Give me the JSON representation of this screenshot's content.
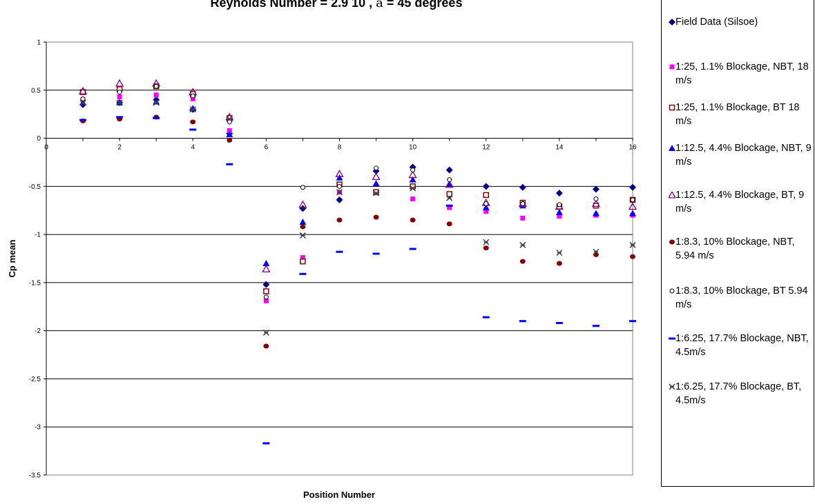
{
  "chart_data": {
    "type": "scatter",
    "title_prefix": "Reynolds Number = 2.9 10",
    "title_sep": " , ",
    "title_alpha": "a",
    "title_suffix": " = 45 degrees",
    "xlabel": "Position Number",
    "ylabel": "Cp mean",
    "xlim": [
      0,
      16
    ],
    "ylim": [
      -3.5,
      1
    ],
    "xticks": [
      0,
      2,
      4,
      6,
      8,
      10,
      12,
      14,
      16
    ],
    "xtick_labels": [
      "0",
      "2",
      "4",
      "6",
      "8",
      "10",
      "12",
      "14",
      "16"
    ],
    "yticks": [
      1,
      0.5,
      0,
      -0.5,
      -1,
      -1.5,
      -2,
      -2.5,
      -3,
      -3.5
    ],
    "ytick_labels": [
      "1",
      "0.5",
      "0",
      "-0.5",
      "-1",
      "-1.5",
      "-2",
      "-2.5",
      "-3",
      "-3.5"
    ],
    "grid": "horizontal",
    "legend_position": "right",
    "x": [
      1,
      2,
      3,
      4,
      5,
      6,
      7,
      8,
      9,
      10,
      11,
      12,
      13,
      14,
      15,
      16
    ],
    "series": [
      {
        "name": "Field Data (Silsoe)",
        "marker": "diamond",
        "color": "#000080",
        "values": [
          0.35,
          0.37,
          0.4,
          0.3,
          0.05,
          -1.52,
          -0.73,
          -0.64,
          -0.34,
          -0.3,
          -0.33,
          -0.5,
          -0.51,
          -0.57,
          -0.53,
          -0.51
        ]
      },
      {
        "name": "1:25, 1.1% Blockage, NBT, 18 m/s",
        "marker": "square",
        "color": "#ff00ff",
        "values": [
          0.4,
          0.43,
          0.45,
          0.41,
          0.08,
          -1.69,
          -1.24,
          -0.56,
          -0.56,
          -0.63,
          -0.72,
          -0.76,
          -0.83,
          -0.81,
          -0.8,
          -0.8
        ]
      },
      {
        "name": "1:25, 1.1% Blockage, BT 18 m/s",
        "marker": "square-open",
        "color": "#800000",
        "values": [
          0.48,
          0.51,
          0.54,
          0.46,
          0.21,
          -1.59,
          -1.28,
          -0.48,
          -0.56,
          -0.5,
          -0.58,
          -0.59,
          -0.67,
          -0.71,
          -0.7,
          -0.64
        ]
      },
      {
        "name": "1:12.5, 4.4% Blockage, NBT, 9 m/s",
        "marker": "triangle",
        "color": "#0000ff",
        "values": [
          0.37,
          0.37,
          0.38,
          0.31,
          0.04,
          -1.3,
          -0.87,
          -0.41,
          -0.47,
          -0.43,
          -0.48,
          -0.72,
          -0.7,
          -0.77,
          -0.78,
          -0.78
        ]
      },
      {
        "name": "1:12.5, 4.4% Blockage, BT, 9 m/s",
        "marker": "triangle-open",
        "color": "#800080",
        "values": [
          0.49,
          0.57,
          0.57,
          0.48,
          0.22,
          -1.36,
          -0.69,
          -0.37,
          -0.4,
          -0.38,
          -0.48,
          -0.67,
          -0.68,
          -0.71,
          -0.68,
          -0.71
        ]
      },
      {
        "name": "1:8.3, 10% Blockage, NBT, 5.94 m/s",
        "marker": "circle",
        "color": "#800000",
        "values": [
          0.18,
          0.2,
          0.22,
          0.17,
          -0.02,
          -2.16,
          -0.92,
          -0.85,
          -0.82,
          -0.85,
          -0.89,
          -1.14,
          -1.28,
          -1.3,
          -1.21,
          -1.23
        ]
      },
      {
        "name": "1:8.3, 10% Blockage, BT 5.94 m/s",
        "marker": "circle-open",
        "color": "#000000",
        "values": [
          0.41,
          0.48,
          0.54,
          0.44,
          0.17,
          -1.65,
          -0.51,
          -0.5,
          -0.31,
          -0.33,
          -0.43,
          -0.68,
          -0.68,
          -0.69,
          -0.63,
          -0.64
        ]
      },
      {
        "name": "1:6.25, 17.7% Blockage, NBT, 4.5m/s",
        "marker": "dash",
        "color": "#0000ff",
        "values": [
          0.19,
          0.22,
          0.21,
          0.09,
          -0.27,
          -3.17,
          -1.41,
          -1.18,
          -1.2,
          -1.15,
          -0.7,
          -1.86,
          -1.9,
          -1.92,
          -1.95,
          -1.9
        ]
      },
      {
        "name": "1:6.25, 17.7% Blockage, BT, 4.5m/s",
        "marker": "x",
        "color": "#404040",
        "values": [
          0.37,
          0.37,
          0.37,
          0.3,
          0.2,
          -2.02,
          -1.01,
          -0.56,
          -0.57,
          -0.52,
          -0.62,
          -1.08,
          -1.11,
          -1.19,
          -1.18,
          -1.11
        ]
      }
    ]
  }
}
